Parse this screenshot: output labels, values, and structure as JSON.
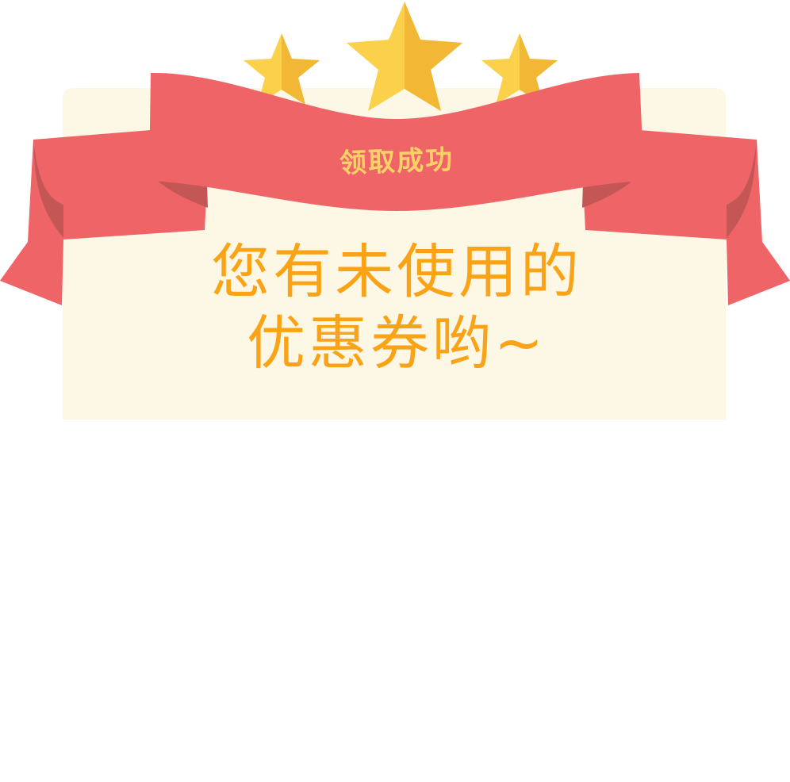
{
  "banner": {
    "title": "领取成功"
  },
  "message": {
    "line1": "您有未使用的",
    "line2": "优惠券哟~"
  },
  "rating": {
    "stars": 3
  },
  "colors": {
    "ribbon": "#ef6466",
    "ribbon_dark": "#c55656",
    "star": "#fbd14b",
    "star_shade": "#f2b735",
    "card_bg": "#fdf7e6",
    "message_text": "#fba316",
    "banner_text": "#fbd068"
  }
}
